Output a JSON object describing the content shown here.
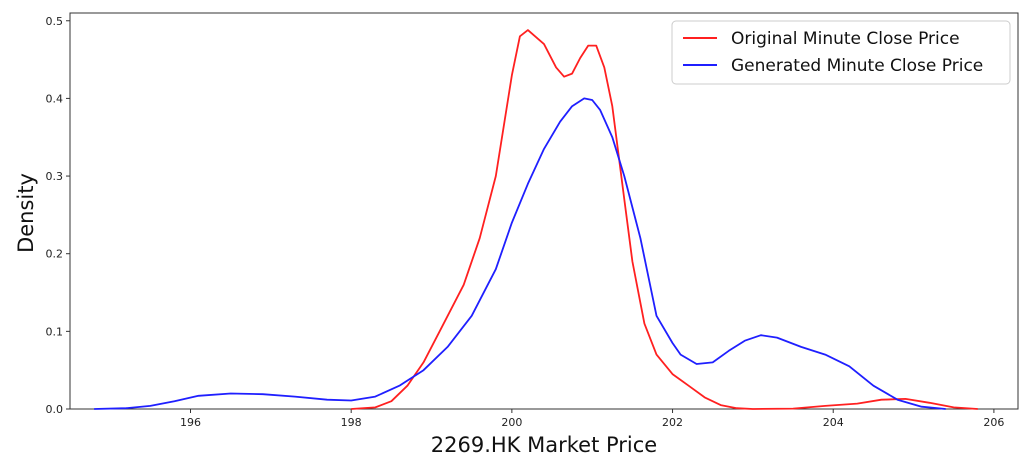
{
  "chart_data": {
    "type": "line",
    "title": "",
    "xlabel": "2269.HK Market Price",
    "ylabel": "Density",
    "xlim": [
      194.5,
      206.3
    ],
    "ylim": [
      0,
      0.51
    ],
    "x_ticks": [
      196,
      198,
      200,
      202,
      204,
      206
    ],
    "y_ticks": [
      0.0,
      0.1,
      0.2,
      0.3,
      0.4,
      0.5
    ],
    "x_tick_labels": [
      "196",
      "198",
      "200",
      "202",
      "204",
      "206"
    ],
    "y_tick_labels": [
      "0.0",
      "0.1",
      "0.2",
      "0.3",
      "0.4",
      "0.5"
    ],
    "grid": false,
    "legend_position": "top-right",
    "series": [
      {
        "name": "Original Minute Close Price",
        "color": "#ff2020",
        "points": [
          [
            198.0,
            0.0
          ],
          [
            198.3,
            0.002
          ],
          [
            198.5,
            0.01
          ],
          [
            198.7,
            0.03
          ],
          [
            198.9,
            0.06
          ],
          [
            199.1,
            0.1
          ],
          [
            199.4,
            0.16
          ],
          [
            199.6,
            0.22
          ],
          [
            199.8,
            0.3
          ],
          [
            200.0,
            0.43
          ],
          [
            200.1,
            0.48
          ],
          [
            200.2,
            0.488
          ],
          [
            200.4,
            0.47
          ],
          [
            200.55,
            0.44
          ],
          [
            200.65,
            0.428
          ],
          [
            200.75,
            0.432
          ],
          [
            200.85,
            0.452
          ],
          [
            200.95,
            0.468
          ],
          [
            201.05,
            0.468
          ],
          [
            201.15,
            0.44
          ],
          [
            201.25,
            0.39
          ],
          [
            201.4,
            0.27
          ],
          [
            201.5,
            0.19
          ],
          [
            201.65,
            0.11
          ],
          [
            201.8,
            0.07
          ],
          [
            202.0,
            0.045
          ],
          [
            202.2,
            0.03
          ],
          [
            202.4,
            0.015
          ],
          [
            202.6,
            0.005
          ],
          [
            202.8,
            0.001
          ],
          [
            203.0,
            0.0
          ],
          [
            203.5,
            0.0005
          ],
          [
            203.9,
            0.004
          ],
          [
            204.3,
            0.007
          ],
          [
            204.6,
            0.012
          ],
          [
            204.9,
            0.013
          ],
          [
            205.2,
            0.008
          ],
          [
            205.5,
            0.002
          ],
          [
            205.8,
            0.0
          ]
        ]
      },
      {
        "name": "Generated Minute Close Price",
        "color": "#1f1fff",
        "points": [
          [
            194.8,
            0.0
          ],
          [
            195.2,
            0.001
          ],
          [
            195.5,
            0.004
          ],
          [
            195.8,
            0.01
          ],
          [
            196.1,
            0.017
          ],
          [
            196.5,
            0.02
          ],
          [
            196.9,
            0.019
          ],
          [
            197.3,
            0.016
          ],
          [
            197.7,
            0.012
          ],
          [
            198.0,
            0.011
          ],
          [
            198.3,
            0.016
          ],
          [
            198.6,
            0.03
          ],
          [
            198.9,
            0.05
          ],
          [
            199.2,
            0.08
          ],
          [
            199.5,
            0.12
          ],
          [
            199.8,
            0.18
          ],
          [
            200.0,
            0.24
          ],
          [
            200.2,
            0.29
          ],
          [
            200.4,
            0.335
          ],
          [
            200.6,
            0.37
          ],
          [
            200.75,
            0.39
          ],
          [
            200.9,
            0.4
          ],
          [
            201.0,
            0.398
          ],
          [
            201.1,
            0.385
          ],
          [
            201.25,
            0.35
          ],
          [
            201.4,
            0.3
          ],
          [
            201.6,
            0.22
          ],
          [
            201.8,
            0.12
          ],
          [
            202.0,
            0.085
          ],
          [
            202.1,
            0.07
          ],
          [
            202.3,
            0.058
          ],
          [
            202.5,
            0.06
          ],
          [
            202.7,
            0.075
          ],
          [
            202.9,
            0.088
          ],
          [
            203.1,
            0.095
          ],
          [
            203.3,
            0.092
          ],
          [
            203.6,
            0.08
          ],
          [
            203.9,
            0.07
          ],
          [
            204.2,
            0.055
          ],
          [
            204.5,
            0.03
          ],
          [
            204.8,
            0.012
          ],
          [
            205.1,
            0.003
          ],
          [
            205.4,
            0.0
          ]
        ]
      }
    ]
  }
}
